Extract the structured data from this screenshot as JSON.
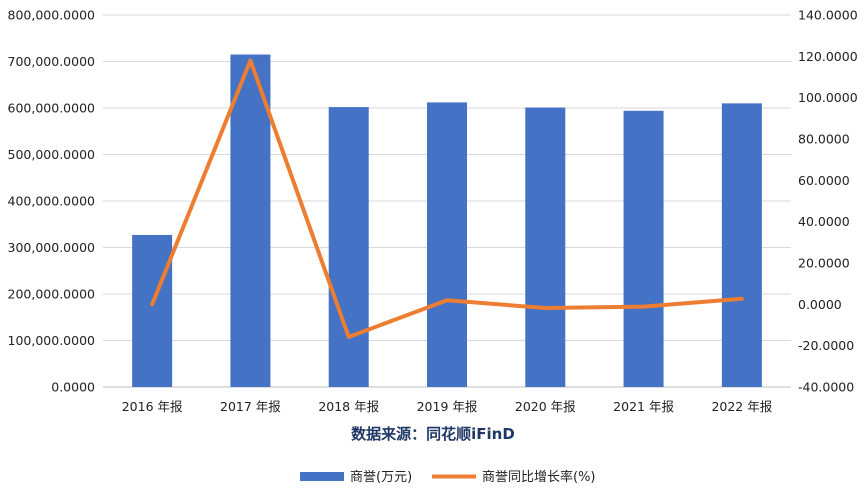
{
  "chart_data": {
    "type": "bar",
    "categories": [
      "2016 年报",
      "2017 年报",
      "2018 年报",
      "2019 年报",
      "2020 年报",
      "2021 年报",
      "2022 年报"
    ],
    "series": [
      {
        "name": "商誉(万元)",
        "type": "bar",
        "axis": "left",
        "color": "#4472c4",
        "values": [
          327000,
          715000,
          602000,
          612000,
          601000,
          594000,
          610000
        ]
      },
      {
        "name": "商誉同比增长率(%)",
        "type": "line",
        "axis": "right",
        "color": "#ed7d31",
        "values": [
          0.0,
          118.0,
          -15.8,
          2.0,
          -1.8,
          -1.1,
          2.7
        ]
      }
    ],
    "left_axis": {
      "ylim": [
        0,
        800000
      ],
      "ticks": [
        0,
        100000,
        200000,
        300000,
        400000,
        500000,
        600000,
        700000,
        800000
      ],
      "tick_labels": [
        "0.0000",
        "100,000.0000",
        "200,000.0000",
        "300,000.0000",
        "400,000.0000",
        "500,000.0000",
        "600,000.0000",
        "700,000.0000",
        "800,000.0000"
      ]
    },
    "right_axis": {
      "ylim": [
        -40,
        140
      ],
      "ticks": [
        -40,
        -20,
        0,
        20,
        40,
        60,
        80,
        100,
        120,
        140
      ],
      "tick_labels": [
        "-40.0000",
        "-20.0000",
        "0.0000",
        "20.0000",
        "40.0000",
        "60.0000",
        "80.0000",
        "100.0000",
        "120.0000",
        "140.0000"
      ]
    },
    "source_note": "数据来源：同花顺iFinD",
    "legend_position": "bottom",
    "grid": true
  }
}
